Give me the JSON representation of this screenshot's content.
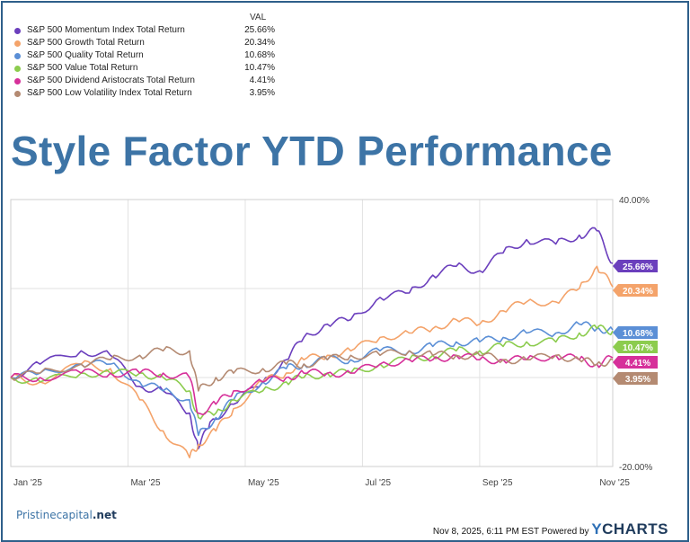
{
  "page_title": "Style Factor YTD Performance",
  "legend": {
    "header": "VAL",
    "items": [
      {
        "name": "S&P 500 Momentum Index Total Return",
        "value": "25.66%",
        "color": "#6b3fbd"
      },
      {
        "name": "S&P 500 Growth Total Return",
        "value": "20.34%",
        "color": "#f4a36a"
      },
      {
        "name": "S&P 500 Quality Total Return",
        "value": "10.68%",
        "color": "#5b8fd6"
      },
      {
        "name": "S&P 500 Value Total Return",
        "value": "10.47%",
        "color": "#8ccc4e"
      },
      {
        "name": "S&P 500 Dividend Aristocrats Total Return",
        "value": "4.41%",
        "color": "#d6309a"
      },
      {
        "name": "S&P 500 Low Volatility Index Total Return",
        "value": "3.95%",
        "color": "#b48a72"
      }
    ]
  },
  "chart_data": {
    "type": "line",
    "x_axis_labels": [
      "Jan '25",
      "Mar '25",
      "May '25",
      "Jul '25",
      "Sep '25",
      "Nov '25"
    ],
    "y_tick_labels": [
      "40.00%",
      "-20.00%"
    ],
    "ylim": [
      -20,
      40
    ],
    "xlim": [
      0,
      10.27
    ],
    "x_unit": "months since Jan 1 2025",
    "series": [
      {
        "name": "S&P 500 Momentum Index Total Return",
        "end_label": "25.66%",
        "color": "#6b3fbd",
        "end": 25.66,
        "points": [
          [
            0,
            0
          ],
          [
            0.5,
            3
          ],
          [
            1.2,
            6
          ],
          [
            1.7,
            5
          ],
          [
            2.2,
            -2
          ],
          [
            2.6,
            -3
          ],
          [
            3.05,
            -8
          ],
          [
            3.2,
            -16
          ],
          [
            3.4,
            -10
          ],
          [
            3.8,
            -6
          ],
          [
            4.3,
            -1
          ],
          [
            4.7,
            4
          ],
          [
            5.0,
            9
          ],
          [
            5.4,
            12
          ],
          [
            5.8,
            13
          ],
          [
            6.3,
            18
          ],
          [
            6.8,
            19
          ],
          [
            7.2,
            23
          ],
          [
            7.6,
            25
          ],
          [
            8.0,
            24
          ],
          [
            8.4,
            28
          ],
          [
            8.8,
            31
          ],
          [
            9.3,
            30
          ],
          [
            9.7,
            32
          ],
          [
            10.0,
            33
          ],
          [
            10.27,
            25.66
          ]
        ]
      },
      {
        "name": "S&P 500 Growth Total Return",
        "end_label": "20.34%",
        "color": "#f4a36a",
        "end": 20.34,
        "points": [
          [
            0,
            0
          ],
          [
            0.5,
            -1
          ],
          [
            1.2,
            3
          ],
          [
            1.7,
            2
          ],
          [
            2.2,
            -5
          ],
          [
            2.6,
            -12
          ],
          [
            3.05,
            -18
          ],
          [
            3.2,
            -15
          ],
          [
            3.5,
            -12
          ],
          [
            3.8,
            -7
          ],
          [
            4.3,
            -1
          ],
          [
            4.7,
            1
          ],
          [
            5.0,
            4
          ],
          [
            5.4,
            5
          ],
          [
            5.8,
            6
          ],
          [
            6.3,
            9
          ],
          [
            6.8,
            10
          ],
          [
            7.2,
            11
          ],
          [
            7.6,
            13
          ],
          [
            8.0,
            12
          ],
          [
            8.4,
            15
          ],
          [
            8.8,
            17
          ],
          [
            9.3,
            17
          ],
          [
            9.7,
            20
          ],
          [
            10.0,
            25
          ],
          [
            10.27,
            20.34
          ]
        ]
      },
      {
        "name": "S&P 500 Quality Total Return",
        "end_label": "10.68%",
        "color": "#5b8fd6",
        "end": 10.68,
        "points": [
          [
            0,
            0
          ],
          [
            0.5,
            1
          ],
          [
            1.2,
            3
          ],
          [
            1.7,
            3
          ],
          [
            2.2,
            -1
          ],
          [
            2.6,
            -3
          ],
          [
            3.05,
            -5
          ],
          [
            3.2,
            -13
          ],
          [
            3.5,
            -9
          ],
          [
            3.8,
            -5
          ],
          [
            4.3,
            -1
          ],
          [
            4.7,
            2
          ],
          [
            5.0,
            3
          ],
          [
            5.4,
            4
          ],
          [
            5.8,
            4
          ],
          [
            6.3,
            6
          ],
          [
            6.8,
            6
          ],
          [
            7.2,
            7
          ],
          [
            7.6,
            8
          ],
          [
            8.0,
            8
          ],
          [
            8.4,
            9
          ],
          [
            8.8,
            10
          ],
          [
            9.3,
            10
          ],
          [
            9.7,
            12
          ],
          [
            10.0,
            11
          ],
          [
            10.27,
            10.68
          ]
        ]
      },
      {
        "name": "S&P 500 Value Total Return",
        "end_label": "10.47%",
        "color": "#8ccc4e",
        "end": 10.47,
        "points": [
          [
            0,
            0
          ],
          [
            0.5,
            -1
          ],
          [
            1.2,
            1
          ],
          [
            1.7,
            1
          ],
          [
            2.2,
            1
          ],
          [
            2.6,
            0
          ],
          [
            3.05,
            -3
          ],
          [
            3.2,
            -9
          ],
          [
            3.5,
            -8
          ],
          [
            3.8,
            -5
          ],
          [
            4.3,
            -3
          ],
          [
            4.7,
            -1
          ],
          [
            5.0,
            0
          ],
          [
            5.4,
            1
          ],
          [
            5.8,
            1
          ],
          [
            6.3,
            3
          ],
          [
            6.8,
            4
          ],
          [
            7.2,
            5
          ],
          [
            7.6,
            6
          ],
          [
            8.0,
            6
          ],
          [
            8.4,
            7
          ],
          [
            8.8,
            8
          ],
          [
            9.3,
            8
          ],
          [
            9.7,
            10
          ],
          [
            10.0,
            11
          ],
          [
            10.27,
            10.47
          ]
        ]
      },
      {
        "name": "S&P 500 Dividend Aristocrats Total Return",
        "end_label": "4.41%",
        "color": "#d6309a",
        "end": 4.41,
        "points": [
          [
            0,
            0
          ],
          [
            0.5,
            0
          ],
          [
            1.2,
            1
          ],
          [
            1.7,
            1
          ],
          [
            2.2,
            1
          ],
          [
            2.6,
            1
          ],
          [
            3.05,
            0
          ],
          [
            3.2,
            -8
          ],
          [
            3.5,
            -6
          ],
          [
            3.8,
            -3
          ],
          [
            4.3,
            -1
          ],
          [
            4.7,
            0
          ],
          [
            5.0,
            1
          ],
          [
            5.4,
            1
          ],
          [
            5.8,
            1
          ],
          [
            6.3,
            3
          ],
          [
            6.8,
            4
          ],
          [
            7.2,
            4
          ],
          [
            7.6,
            5
          ],
          [
            8.0,
            4
          ],
          [
            8.4,
            4
          ],
          [
            8.8,
            4
          ],
          [
            9.3,
            5
          ],
          [
            9.7,
            4
          ],
          [
            10.0,
            3
          ],
          [
            10.27,
            4.41
          ]
        ]
      },
      {
        "name": "S&P 500 Low Volatility Index Total Return",
        "end_label": "3.95%",
        "color": "#b48a72",
        "end": 3.95,
        "points": [
          [
            0,
            0
          ],
          [
            0.5,
            1
          ],
          [
            1.2,
            3
          ],
          [
            1.7,
            4
          ],
          [
            2.2,
            5
          ],
          [
            2.6,
            6
          ],
          [
            3.05,
            6
          ],
          [
            3.2,
            -3
          ],
          [
            3.5,
            0
          ],
          [
            3.8,
            1
          ],
          [
            4.3,
            2
          ],
          [
            4.7,
            3
          ],
          [
            5.0,
            3
          ],
          [
            5.4,
            4
          ],
          [
            5.8,
            5
          ],
          [
            6.3,
            5
          ],
          [
            6.8,
            6
          ],
          [
            7.2,
            5
          ],
          [
            7.6,
            5
          ],
          [
            8.0,
            5
          ],
          [
            8.4,
            4
          ],
          [
            8.8,
            4
          ],
          [
            9.3,
            5
          ],
          [
            9.7,
            4
          ],
          [
            10.0,
            3
          ],
          [
            10.27,
            3.95
          ]
        ]
      }
    ]
  },
  "footer": {
    "brand_main": "Pristinecapital",
    "brand_suffix": ".net",
    "timestamp": "Nov 8, 2025, 6:11 PM EST Powered by",
    "ycharts_y": "Y",
    "ycharts_rest": "CHARTS"
  }
}
